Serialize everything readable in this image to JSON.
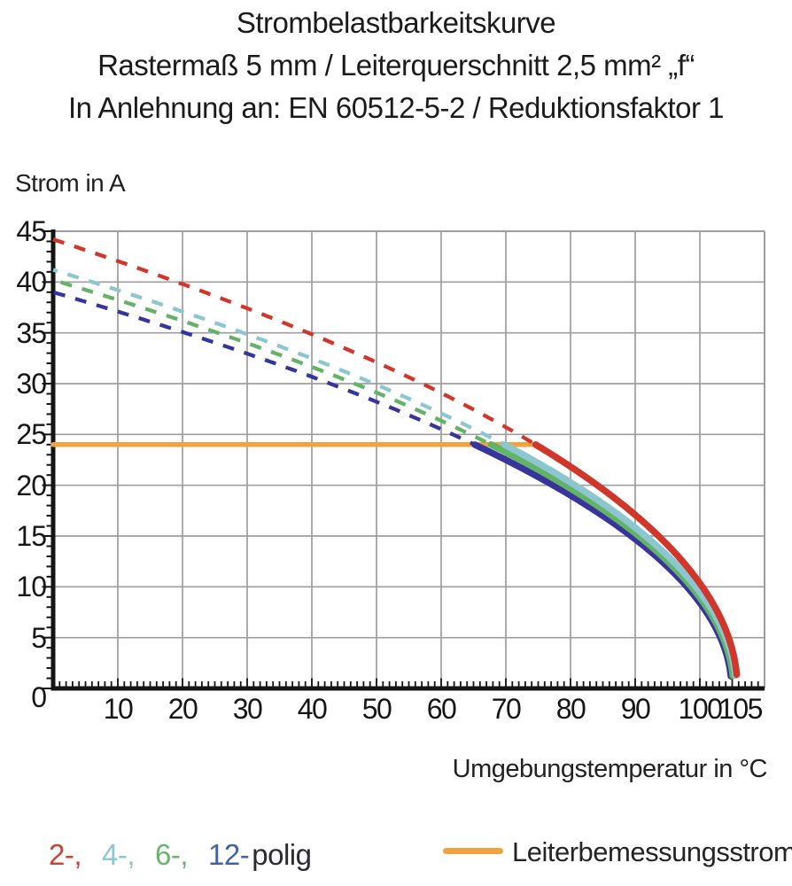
{
  "title": {
    "line1": "Strombelastbarkeitskurve",
    "line2": "Rastermaß 5 mm / Leiterquerschnitt 2,5 mm² „f“",
    "line3": "In Anlehnung an: EN 60512-5-2 / Reduktionsfaktor 1"
  },
  "labels": {
    "y_axis_title": "Strom in A",
    "x_axis_title": "Umgebungstemperatur in °C",
    "origin_zero": "0"
  },
  "legend": {
    "items": [
      {
        "text": "2-,",
        "color": "#cc4238",
        "series": "2-polig"
      },
      {
        "text": "4-,",
        "color": "#8cc6d1",
        "series": "4-polig"
      },
      {
        "text": "6-,",
        "color": "#6ab56d",
        "series": "6-polig"
      },
      {
        "text": "12-",
        "color": "#3e63ab",
        "series": "12-polig"
      },
      {
        "text": "polig",
        "color": "#2b2b31",
        "series": null
      }
    ],
    "rated_label": "Leiterbemessungsstrom",
    "rated_color": "#f3a33d"
  },
  "chart_data": {
    "type": "line",
    "title": "Strombelastbarkeitskurve",
    "xlabel": "Umgebungstemperatur in °C",
    "ylabel": "Strom in A",
    "xlim": [
      0,
      110
    ],
    "ylim": [
      0,
      45
    ],
    "x_ticks_labeled": [
      10,
      20,
      30,
      40,
      50,
      60,
      70,
      80,
      90,
      100,
      105
    ],
    "y_ticks_labeled": [
      45,
      40,
      35,
      30,
      25,
      20,
      15,
      10,
      5
    ],
    "x_minor_tick_step": 1,
    "y_minor_tick_step": 1,
    "grid": true,
    "grid_color": "#9e9e9e",
    "axis_color": "#141414",
    "rated_current_line": {
      "name": "Leiterbemessungsstrom",
      "value_A": 24,
      "x_start": 0,
      "x_end": 74.6,
      "color": "#f3a33d"
    },
    "series_note": "Derating curves I(T)=I0*sqrt(1-T/T_end); dashed above rated current (24 A), solid below",
    "series": [
      {
        "name": "2-polig",
        "color": "#d0372a",
        "I0": 44.2,
        "T_end": 105.8,
        "T_cross_24A": 74.6,
        "dash_offset": 0,
        "x": [
          0,
          10,
          20,
          30,
          40,
          50,
          60,
          70,
          74.6,
          80,
          90,
          100,
          105.8
        ],
        "y": [
          44.2,
          42.1,
          39.8,
          37.4,
          34.9,
          32.1,
          29.1,
          25.7,
          24,
          21.8,
          17.1,
          10.3,
          0
        ]
      },
      {
        "name": "4-polig",
        "color": "#8cc6d1",
        "I0": 41.2,
        "T_end": 105.6,
        "T_cross_24A": 69.8,
        "dash_offset": 8,
        "x": [
          0,
          10,
          20,
          30,
          40,
          50,
          60,
          69.8,
          70,
          80,
          90,
          100,
          105.6
        ],
        "y": [
          41.2,
          39.2,
          37.1,
          34.9,
          32.5,
          29.9,
          27.1,
          24,
          23.9,
          20.3,
          15.8,
          9.5,
          0
        ]
      },
      {
        "name": "6-polig",
        "color": "#63b366",
        "I0": 40.2,
        "T_end": 105.2,
        "T_cross_24A": 67.7,
        "dash_offset": 16,
        "x": [
          0,
          10,
          20,
          30,
          40,
          50,
          60,
          67.7,
          70,
          80,
          90,
          100,
          105.2
        ],
        "y": [
          40.2,
          38.2,
          36.2,
          34.0,
          31.7,
          29.1,
          26.4,
          24,
          23.3,
          19.7,
          15.3,
          8.9,
          0
        ]
      },
      {
        "name": "12-polig",
        "color": "#37359b",
        "I0": 39.0,
        "T_end": 104.9,
        "T_cross_24A": 65.2,
        "dash_offset": 24,
        "x": [
          0,
          10,
          20,
          30,
          40,
          50,
          60,
          65.2,
          70,
          80,
          90,
          100,
          104.9
        ],
        "y": [
          39.0,
          37.1,
          35.1,
          33.0,
          30.7,
          28.2,
          25.5,
          24,
          22.5,
          19.0,
          14.7,
          8.4,
          0
        ]
      }
    ],
    "legend_position": "bottom"
  }
}
